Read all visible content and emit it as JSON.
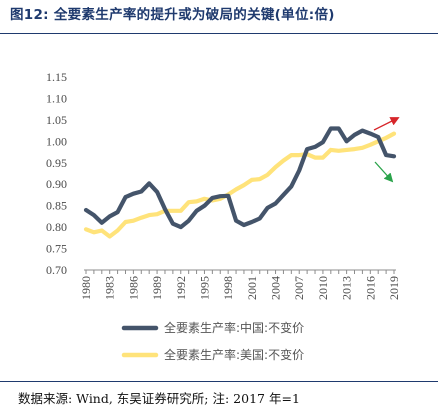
{
  "header": {
    "title": "图12:  全要素生产率的提升或为破局的关键(单位:倍)"
  },
  "footer": {
    "source": "数据来源:  Wind,  东吴证券研究所;  注:  2017 年=1"
  },
  "colors": {
    "china": "#44546a",
    "us": "#ffe37a",
    "red_arrow": "#d7262b",
    "green_arrow": "#2aa34a",
    "rule": "#1f3a6e"
  },
  "chart_data": {
    "type": "line",
    "title": "全要素生产率的提升或为破局的关键(单位:倍)",
    "xlabel": "",
    "ylabel": "",
    "x": [
      1980,
      1981,
      1982,
      1983,
      1984,
      1985,
      1986,
      1987,
      1988,
      1989,
      1990,
      1991,
      1992,
      1993,
      1994,
      1995,
      1996,
      1997,
      1998,
      1999,
      2000,
      2001,
      2002,
      2003,
      2004,
      2005,
      2006,
      2007,
      2008,
      2009,
      2010,
      2011,
      2012,
      2013,
      2014,
      2015,
      2016,
      2017,
      2018,
      2019
    ],
    "xticks": [
      "1980",
      "1983",
      "1986",
      "1989",
      "1992",
      "1995",
      "1998",
      "2001",
      "2004",
      "2007",
      "2010",
      "2013",
      "2016",
      "2019"
    ],
    "ylim": [
      0.7,
      1.15
    ],
    "yticks": [
      "0.70",
      "0.75",
      "0.80",
      "0.85",
      "0.90",
      "0.95",
      "1.00",
      "1.05",
      "1.10",
      "1.15"
    ],
    "grid": false,
    "legend_position": "bottom",
    "series": [
      {
        "name": "全要素生产率:中国:不变价",
        "values": [
          0.84,
          0.828,
          0.81,
          0.825,
          0.835,
          0.87,
          0.878,
          0.883,
          0.902,
          0.882,
          0.842,
          0.808,
          0.8,
          0.815,
          0.838,
          0.85,
          0.868,
          0.872,
          0.873,
          0.815,
          0.805,
          0.812,
          0.82,
          0.845,
          0.855,
          0.875,
          0.895,
          0.932,
          0.982,
          0.987,
          0.998,
          1.03,
          1.03,
          1.0,
          1.015,
          1.025,
          1.018,
          1.01,
          0.968,
          0.965
        ]
      },
      {
        "name": "全要素生产率:美国:不变价",
        "values": [
          0.795,
          0.788,
          0.792,
          0.778,
          0.792,
          0.812,
          0.815,
          0.822,
          0.828,
          0.83,
          0.838,
          0.838,
          0.838,
          0.858,
          0.86,
          0.866,
          0.862,
          0.866,
          0.876,
          0.888,
          0.898,
          0.91,
          0.912,
          0.922,
          0.94,
          0.955,
          0.968,
          0.968,
          0.97,
          0.962,
          0.962,
          0.98,
          0.978,
          0.98,
          0.982,
          0.985,
          0.992,
          1.0,
          1.008,
          1.018
        ]
      }
    ],
    "annotations": [
      "up-arrow-red",
      "down-arrow-green"
    ]
  }
}
